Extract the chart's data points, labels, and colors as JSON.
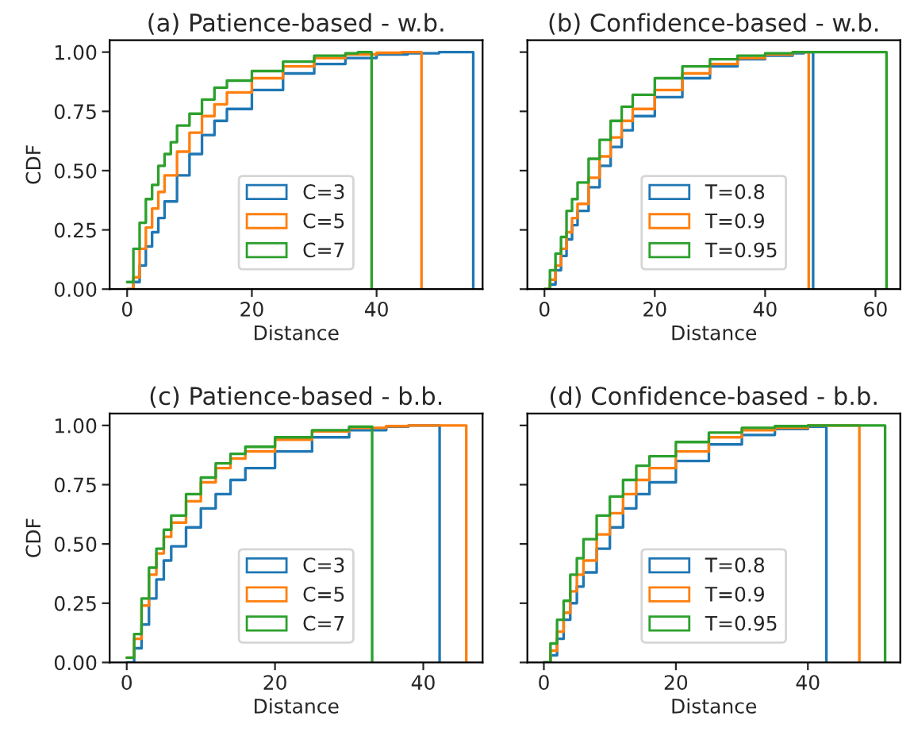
{
  "chart_data": [
    {
      "type": "step",
      "title": "(a) Patience-based - w.b.",
      "xlabel": "Distance",
      "ylabel": "CDF",
      "xlim": [
        -2.8,
        57
      ],
      "xticks": [
        0,
        20,
        40
      ],
      "ylim": [
        0,
        1.05
      ],
      "yticks": [
        {
          "value": 0,
          "label": "0.00"
        },
        {
          "value": 0.25,
          "label": "0.25"
        },
        {
          "value": 0.5,
          "label": "0.50"
        },
        {
          "value": 0.75,
          "label": "0.75"
        },
        {
          "value": 1,
          "label": "1.00"
        }
      ],
      "legend": "bottom",
      "grid": false,
      "series": [
        {
          "name": "C=3",
          "color": "#1f77b4",
          "x": [
            0,
            1,
            2,
            3,
            4,
            5,
            6,
            8,
            10,
            12,
            14,
            16,
            20,
            25,
            30,
            35,
            40,
            45,
            50,
            55.5
          ],
          "values": [
            0,
            0.03,
            0.1,
            0.18,
            0.24,
            0.3,
            0.37,
            0.48,
            0.57,
            0.65,
            0.71,
            0.76,
            0.84,
            0.91,
            0.95,
            0.975,
            0.99,
            0.995,
            1,
            0
          ]
        },
        {
          "name": "C=5",
          "color": "#ff7f0e",
          "x": [
            0,
            1,
            2,
            3,
            4,
            5,
            6,
            8,
            10,
            12,
            14,
            16,
            20,
            25,
            30,
            35,
            40,
            44,
            47.2
          ],
          "values": [
            0,
            0.05,
            0.17,
            0.26,
            0.34,
            0.41,
            0.48,
            0.58,
            0.66,
            0.73,
            0.78,
            0.83,
            0.89,
            0.94,
            0.975,
            0.99,
            0.997,
            1,
            0
          ]
        },
        {
          "name": "C=7",
          "color": "#2ca02c",
          "x": [
            0,
            1,
            2,
            3,
            4,
            5,
            6,
            7,
            8,
            10,
            12,
            14,
            16,
            20,
            25,
            30,
            35,
            37,
            39.2
          ],
          "values": [
            0.03,
            0.17,
            0.28,
            0.38,
            0.44,
            0.52,
            0.57,
            0.62,
            0.69,
            0.74,
            0.8,
            0.85,
            0.88,
            0.92,
            0.96,
            0.985,
            0.995,
            1,
            0
          ]
        }
      ]
    },
    {
      "type": "step",
      "title": "(b) Confidence-based - w.b.",
      "xlabel": "Distance",
      "xlim": [
        -3.1,
        64.5
      ],
      "xticks": [
        0,
        20,
        40,
        60
      ],
      "ylim": [
        0,
        1.05
      ],
      "yticks": [
        {
          "value": 0,
          "label": null
        },
        {
          "value": 0.25,
          "label": null
        },
        {
          "value": 0.5,
          "label": null
        },
        {
          "value": 0.75,
          "label": null
        },
        {
          "value": 1,
          "label": null
        }
      ],
      "tick_labels": "x",
      "legend": "bottom",
      "grid": false,
      "series": [
        {
          "name": "T=0.8",
          "color": "#1f77b4",
          "x": [
            0,
            1,
            2,
            3,
            4,
            5,
            6,
            8,
            10,
            12,
            14,
            16,
            20,
            25,
            30,
            35,
            40,
            45,
            47,
            48.7
          ],
          "values": [
            0,
            0.02,
            0.08,
            0.14,
            0.21,
            0.27,
            0.33,
            0.43,
            0.52,
            0.6,
            0.67,
            0.73,
            0.81,
            0.89,
            0.94,
            0.97,
            0.985,
            0.995,
            1,
            0
          ]
        },
        {
          "name": "T=0.9",
          "color": "#ff7f0e",
          "x": [
            0,
            1,
            2,
            3,
            4,
            5,
            6,
            8,
            10,
            12,
            14,
            16,
            20,
            25,
            30,
            35,
            40,
            45,
            47.9
          ],
          "values": [
            0,
            0.04,
            0.1,
            0.17,
            0.24,
            0.3,
            0.36,
            0.47,
            0.56,
            0.64,
            0.71,
            0.76,
            0.84,
            0.91,
            0.95,
            0.975,
            0.99,
            1,
            0
          ]
        },
        {
          "name": "T=0.95",
          "color": "#2ca02c",
          "x": [
            0,
            1,
            2,
            3,
            4,
            5,
            6,
            8,
            10,
            12,
            14,
            16,
            20,
            25,
            30,
            35,
            40,
            45,
            62
          ],
          "values": [
            0,
            0.08,
            0.15,
            0.22,
            0.33,
            0.38,
            0.45,
            0.55,
            0.63,
            0.71,
            0.77,
            0.82,
            0.89,
            0.94,
            0.97,
            0.985,
            0.995,
            1,
            0
          ]
        }
      ]
    },
    {
      "type": "step",
      "title": "(c) Patience-based - b.b.",
      "xlabel": "Distance",
      "ylabel": "CDF",
      "xlim": [
        -2.3,
        48
      ],
      "xticks": [
        0,
        20,
        40
      ],
      "ylim": [
        0,
        1.05
      ],
      "yticks": [
        {
          "value": 0,
          "label": "0.00"
        },
        {
          "value": 0.25,
          "label": "0.25"
        },
        {
          "value": 0.5,
          "label": "0.50"
        },
        {
          "value": 0.75,
          "label": "0.75"
        },
        {
          "value": 1,
          "label": "1.00"
        }
      ],
      "legend": "bottom",
      "grid": false,
      "series": [
        {
          "name": "C=3",
          "color": "#1f77b4",
          "x": [
            0,
            1,
            2,
            3,
            4,
            5,
            6,
            8,
            10,
            12,
            14,
            16,
            20,
            25,
            30,
            35,
            38,
            42.2
          ],
          "values": [
            0,
            0.06,
            0.16,
            0.27,
            0.35,
            0.43,
            0.49,
            0.57,
            0.65,
            0.71,
            0.77,
            0.82,
            0.89,
            0.95,
            0.98,
            0.995,
            1,
            0
          ]
        },
        {
          "name": "C=5",
          "color": "#ff7f0e",
          "x": [
            0,
            1,
            2,
            3,
            4,
            5,
            6,
            8,
            10,
            12,
            14,
            16,
            20,
            25,
            30,
            35,
            38,
            45.8
          ],
          "values": [
            0.02,
            0.1,
            0.24,
            0.37,
            0.46,
            0.53,
            0.59,
            0.68,
            0.76,
            0.82,
            0.86,
            0.89,
            0.94,
            0.975,
            0.99,
            0.997,
            1,
            0
          ]
        },
        {
          "name": "C=7",
          "color": "#2ca02c",
          "x": [
            0,
            1,
            2,
            3,
            4,
            5,
            6,
            8,
            10,
            12,
            14,
            16,
            20,
            25,
            30,
            33.1
          ],
          "values": [
            0.02,
            0.12,
            0.27,
            0.4,
            0.48,
            0.56,
            0.62,
            0.71,
            0.78,
            0.84,
            0.88,
            0.91,
            0.95,
            0.98,
            0.995,
            0
          ]
        }
      ]
    },
    {
      "type": "step",
      "title": "(d) Confidence-based - b.b.",
      "xlabel": "Distance",
      "xlim": [
        -2.5,
        54
      ],
      "xticks": [
        0,
        20,
        40
      ],
      "ylim": [
        0,
        1.05
      ],
      "yticks": [
        {
          "value": 0,
          "label": null
        },
        {
          "value": 0.25,
          "label": null
        },
        {
          "value": 0.5,
          "label": null
        },
        {
          "value": 0.75,
          "label": null
        },
        {
          "value": 1,
          "label": null
        }
      ],
      "tick_labels": "x",
      "legend": "bottom",
      "grid": false,
      "series": [
        {
          "name": "T=0.8",
          "color": "#1f77b4",
          "x": [
            0,
            1,
            2,
            3,
            4,
            5,
            6,
            8,
            10,
            12,
            14,
            16,
            20,
            25,
            30,
            35,
            40,
            42.8
          ],
          "values": [
            0,
            0.03,
            0.1,
            0.18,
            0.25,
            0.32,
            0.38,
            0.48,
            0.57,
            0.65,
            0.71,
            0.76,
            0.85,
            0.92,
            0.96,
            0.985,
            0.995,
            0
          ]
        },
        {
          "name": "T=0.9",
          "color": "#ff7f0e",
          "x": [
            0,
            1,
            2,
            3,
            4,
            5,
            6,
            8,
            10,
            12,
            14,
            16,
            20,
            25,
            30,
            35,
            40,
            47.8
          ],
          "values": [
            0,
            0.05,
            0.13,
            0.21,
            0.3,
            0.37,
            0.43,
            0.54,
            0.63,
            0.71,
            0.77,
            0.82,
            0.89,
            0.95,
            0.98,
            0.99,
            1,
            0
          ]
        },
        {
          "name": "T=0.95",
          "color": "#2ca02c",
          "x": [
            0,
            1,
            2,
            3,
            4,
            5,
            6,
            8,
            10,
            12,
            14,
            16,
            20,
            25,
            30,
            35,
            40,
            51.7
          ],
          "values": [
            0,
            0.08,
            0.18,
            0.26,
            0.37,
            0.44,
            0.52,
            0.62,
            0.7,
            0.77,
            0.83,
            0.87,
            0.93,
            0.97,
            0.99,
            0.997,
            1,
            0
          ]
        }
      ]
    }
  ]
}
